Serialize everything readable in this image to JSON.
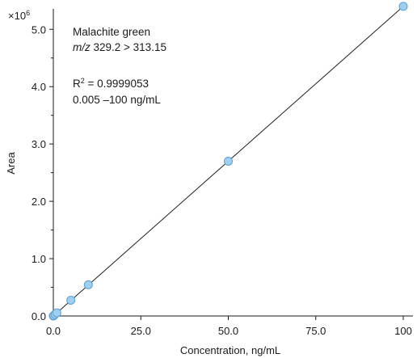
{
  "chart_data": {
    "type": "scatter",
    "title": "",
    "xlabel": "Concentration, ng/mL",
    "ylabel": "Area",
    "y_multiplier_label": "×10",
    "y_multiplier_exp": "6",
    "xlim": [
      0,
      100
    ],
    "ylim": [
      0,
      5.3
    ],
    "x_ticks": [
      0,
      25,
      50,
      75,
      100
    ],
    "x_tick_labels": [
      "0.0",
      "25.0",
      "50.0",
      "75.0",
      "100"
    ],
    "y_ticks": [
      0,
      1,
      2,
      3,
      4,
      5
    ],
    "y_tick_labels": [
      "0.0",
      "1.0",
      "2.0",
      "3.0",
      "4.0",
      "5.0"
    ],
    "grid": false,
    "series": [
      {
        "points": [
          {
            "x": 0.005,
            "y": 0.0003
          },
          {
            "x": 0.05,
            "y": 0.003
          },
          {
            "x": 0.1,
            "y": 0.006
          },
          {
            "x": 0.5,
            "y": 0.028
          },
          {
            "x": 1,
            "y": 0.055
          },
          {
            "x": 5,
            "y": 0.275
          },
          {
            "x": 10,
            "y": 0.545
          },
          {
            "x": 50,
            "y": 2.7
          },
          {
            "x": 100,
            "y": 5.4
          }
        ],
        "fit_line": {
          "x0": 0,
          "y0": 0,
          "x1": 100,
          "y1": 5.4
        },
        "marker_color": "#9fd0f1",
        "marker_edge": "#5b9fd0",
        "line_color": "#222222"
      }
    ],
    "annotations": {
      "compound": "Malachite green",
      "mz_prefix": "m/z",
      "mz_text": " 329.2 > 313.15",
      "r2_label": "R",
      "r2_sup": "2",
      "r2_value": " = 0.9999053",
      "range": "0.005 –100 ng/mL"
    }
  }
}
